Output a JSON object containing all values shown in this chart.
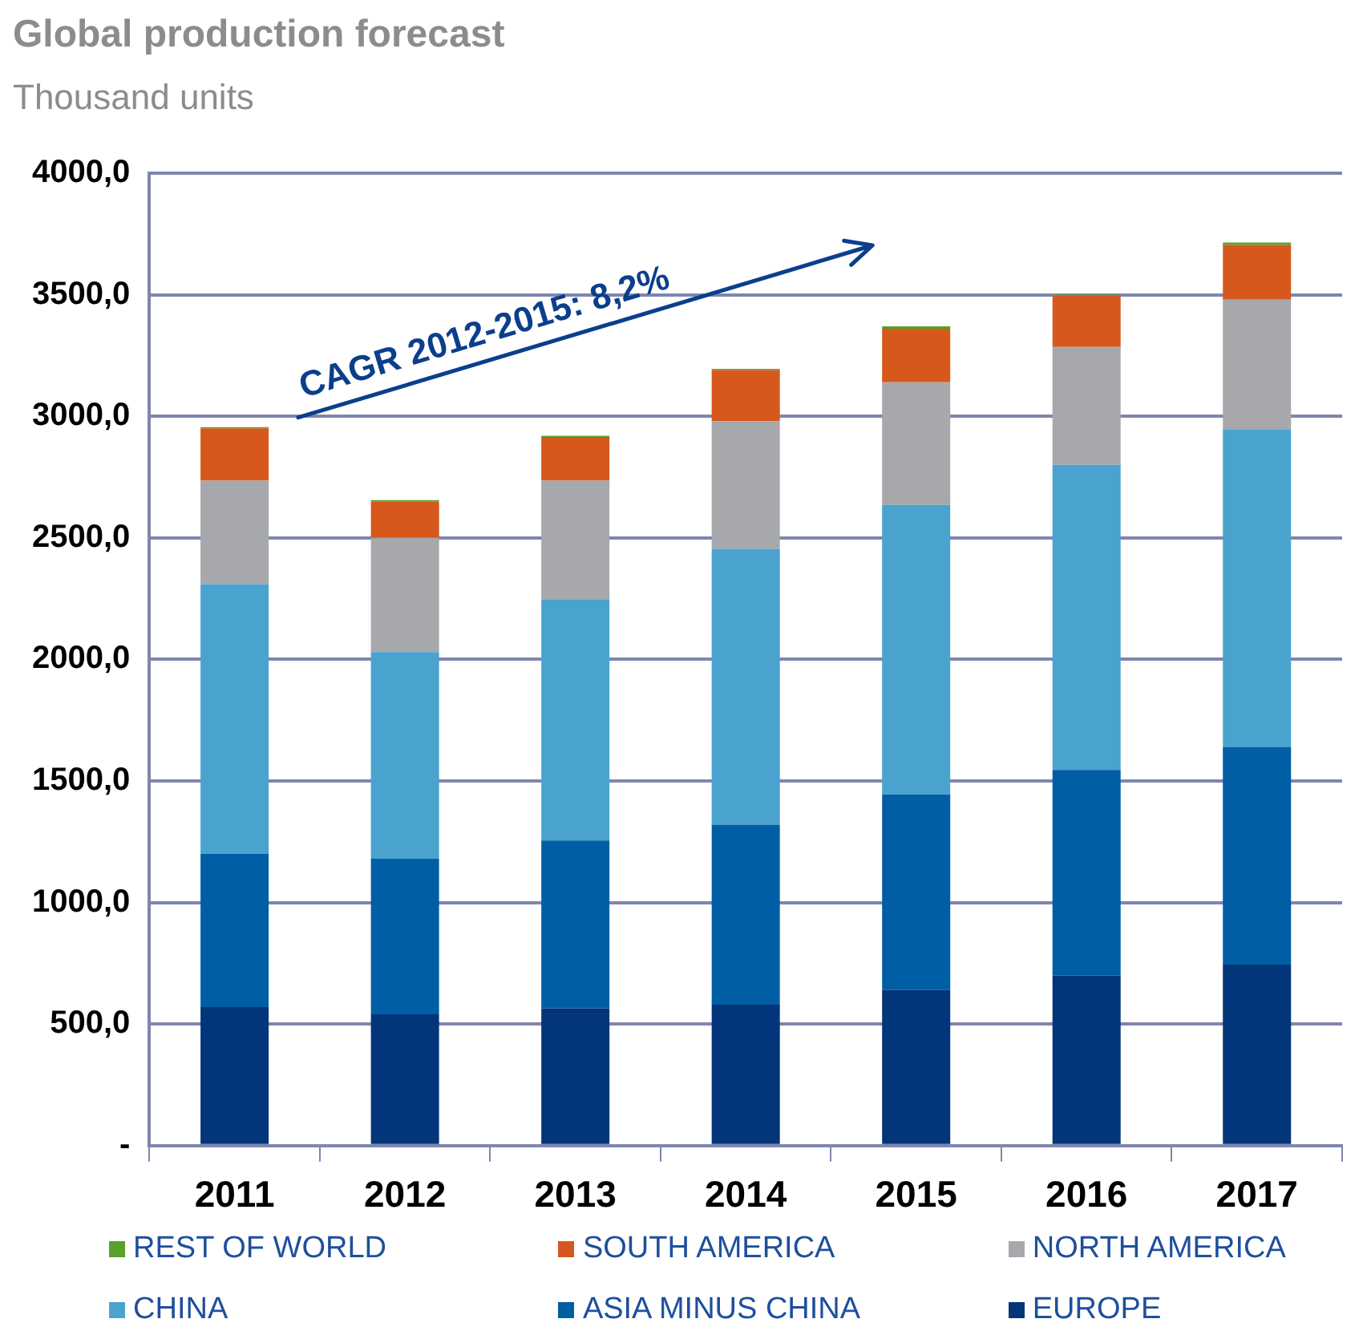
{
  "chart_data": {
    "type": "bar",
    "title": "Global production forecast",
    "subtitle": "Thousand units",
    "categories": [
      "2011",
      "2012",
      "2013",
      "2014",
      "2015",
      "2016",
      "2017"
    ],
    "series": [
      {
        "name": "EUROPE",
        "color": "#03357a",
        "values": [
          570,
          540,
          565,
          580,
          640,
          700,
          745
        ]
      },
      {
        "name": "ASIA MINUS CHINA",
        "color": "#005ea5",
        "values": [
          630,
          640,
          690,
          740,
          805,
          845,
          895
        ]
      },
      {
        "name": "CHINA",
        "color": "#4aa3cf",
        "values": [
          1110,
          850,
          990,
          1135,
          1190,
          1255,
          1305
        ]
      },
      {
        "name": "NORTH AMERICA",
        "color": "#a6a8ab",
        "values": [
          425,
          470,
          490,
          525,
          505,
          485,
          535
        ]
      },
      {
        "name": "SOUTH AMERICA",
        "color": "#d6581d",
        "values": [
          215,
          150,
          180,
          210,
          220,
          210,
          225
        ]
      },
      {
        "name": "REST OF WORLD",
        "color": "#5aa02c",
        "values": [
          5,
          5,
          5,
          5,
          10,
          5,
          10
        ]
      }
    ],
    "stacked": true,
    "ylim": [
      0,
      4000
    ],
    "yticks": [
      {
        "value": 0,
        "label": "-"
      },
      {
        "value": 500,
        "label": "500,0"
      },
      {
        "value": 1000,
        "label": "1000,0"
      },
      {
        "value": 1500,
        "label": "1500,0"
      },
      {
        "value": 2000,
        "label": "2000,0"
      },
      {
        "value": 2500,
        "label": "2500,0"
      },
      {
        "value": 3000,
        "label": "3000,0"
      },
      {
        "value": 3500,
        "label": "3500,0"
      },
      {
        "value": 4000,
        "label": "4000,0"
      }
    ],
    "grid": "y",
    "legend": "bottom",
    "annotations": [
      "CAGR 2012-2015: 8,2%"
    ]
  }
}
